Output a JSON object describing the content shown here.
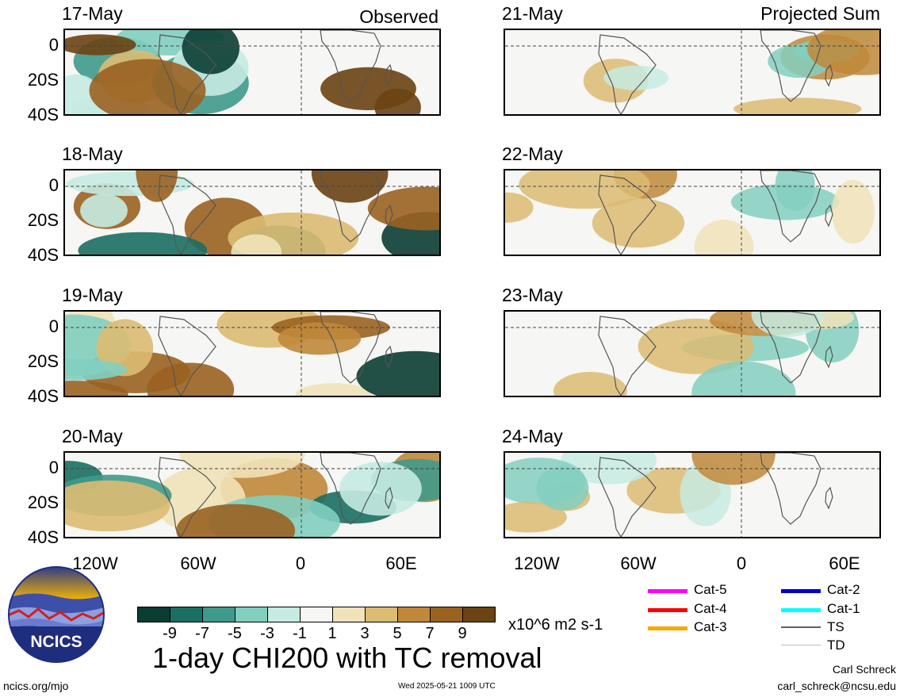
{
  "columns": {
    "left_title": "Observed",
    "right_title": "Projected Sum"
  },
  "panels": [
    {
      "date": "17-May",
      "column": "left"
    },
    {
      "date": "18-May",
      "column": "left"
    },
    {
      "date": "19-May",
      "column": "left"
    },
    {
      "date": "20-May",
      "column": "left"
    },
    {
      "date": "21-May",
      "column": "right"
    },
    {
      "date": "22-May",
      "column": "right"
    },
    {
      "date": "23-May",
      "column": "right"
    },
    {
      "date": "24-May",
      "column": "right"
    }
  ],
  "axes": {
    "lat_labels": [
      "0",
      "20S",
      "40S"
    ],
    "lon_labels": [
      "120W",
      "60W",
      "0",
      "60E"
    ]
  },
  "colorbar": {
    "tick_labels": [
      "-9",
      "-7",
      "-5",
      "-3",
      "-1",
      "1",
      "3",
      "5",
      "7",
      "9"
    ],
    "colors": [
      "#0b3d33",
      "#1b6f62",
      "#3f9a8c",
      "#82cfc0",
      "#c5ebe2",
      "#f6f6f4",
      "#f1e3b9",
      "#dcbb72",
      "#c0883a",
      "#9a6221",
      "#6c4312"
    ],
    "units": "x10^6 m2 s-1"
  },
  "main_title": "1-day CHI200 with TC removal",
  "legend": {
    "items": [
      {
        "label": "Cat-5",
        "color": "#ff00ff"
      },
      {
        "label": "Cat-4",
        "color": "#ff0000"
      },
      {
        "label": "Cat-3",
        "color": "#ffa500"
      },
      {
        "label": "Cat-2",
        "color": "#0000cc"
      },
      {
        "label": "Cat-1",
        "color": "#00ffff"
      },
      {
        "label": "TS",
        "color": "#606060"
      },
      {
        "label": "TD",
        "color": "#bbbbbb"
      }
    ]
  },
  "logo": {
    "text": "NCICS"
  },
  "footer": {
    "url": "ncics.org/mjo",
    "timestamp": "Wed 2025-05-21 1009 UTC",
    "author": "Carl Schreck",
    "email": "carl_schreck@ncsu.edu"
  }
}
